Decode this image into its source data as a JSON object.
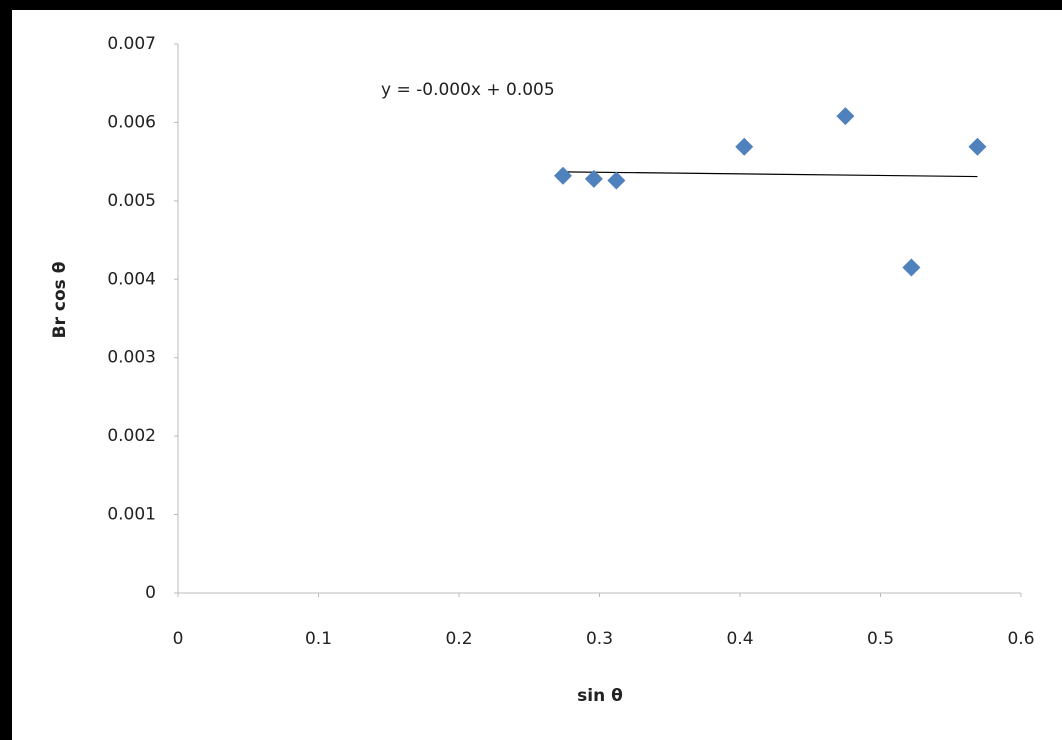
{
  "chart_data": {
    "type": "scatter",
    "x_label": "sin θ",
    "y_label": "Br cos θ",
    "x": [
      0.274,
      0.296,
      0.312,
      0.403,
      0.475,
      0.522,
      0.569
    ],
    "y": [
      0.00532,
      0.00528,
      0.00526,
      0.00569,
      0.00608,
      0.00415,
      0.00569
    ],
    "color": "#4f81bd",
    "trendline": {
      "equation": "y = -0.000x + 0.005",
      "x": [
        0.274,
        0.569
      ],
      "y": [
        0.00537,
        0.00531
      ],
      "color": "#000000"
    },
    "xlim": [
      0,
      0.6
    ],
    "xticks": [
      0,
      0.1,
      0.2,
      0.3,
      0.4,
      0.5,
      0.6
    ],
    "ylim": [
      0,
      0.007
    ],
    "yticks": [
      0,
      0.001,
      0.002,
      0.003,
      0.004,
      0.005,
      0.006,
      0.007
    ],
    "grid": false
  }
}
